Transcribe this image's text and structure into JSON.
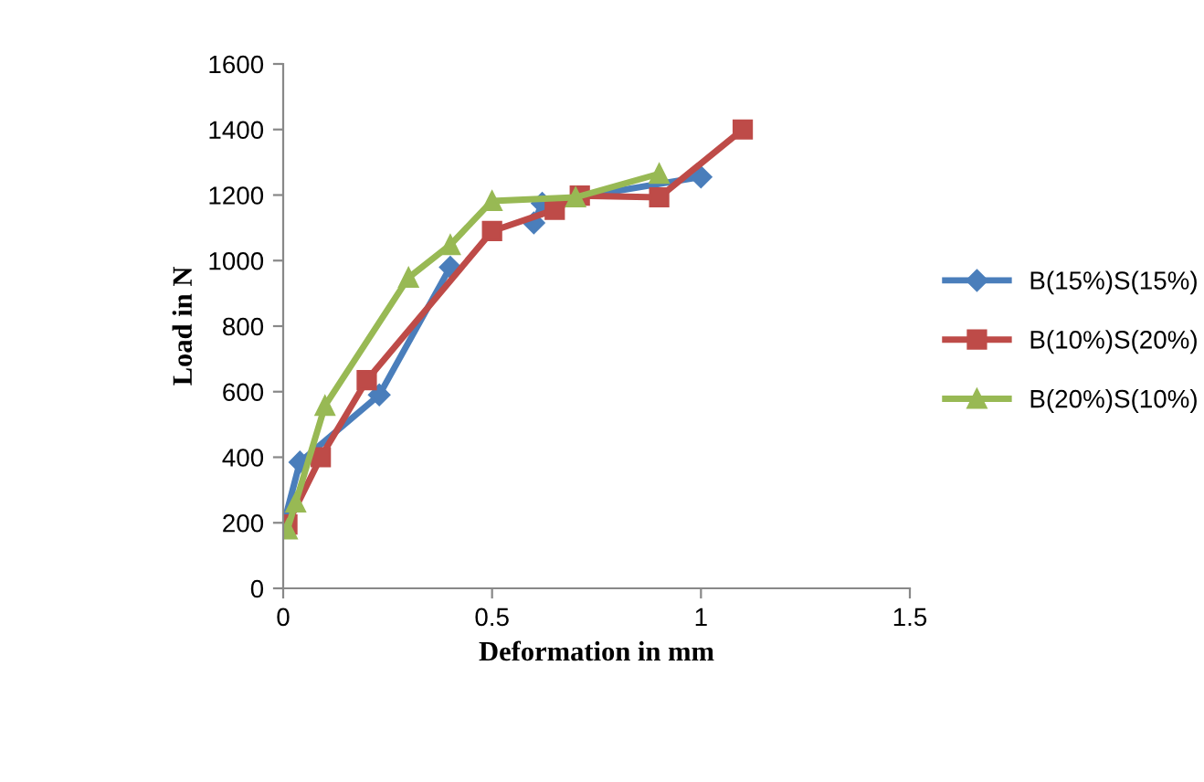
{
  "chart_data": {
    "type": "line",
    "xlabel": "Deformation in mm",
    "ylabel": "Load in N",
    "xlim": [
      0,
      1.5
    ],
    "xticks": [
      0,
      0.5,
      1,
      1.5
    ],
    "ylim": [
      0,
      1600
    ],
    "yticks": [
      0,
      200,
      400,
      600,
      800,
      1000,
      1200,
      1400,
      1600
    ],
    "grid": false,
    "legend": "right",
    "series": [
      {
        "name": "B(15%)S(15%)",
        "color": "#4a7ebb",
        "marker": "diamond",
        "x": [
          0,
          0.04,
          0.23,
          0.4,
          0.5,
          0.6,
          0.62,
          1.0
        ],
        "values": [
          190,
          385,
          590,
          980,
          null,
          1115,
          1175,
          1255
        ]
      },
      {
        "name": "B(10%)S(20%)",
        "color": "#be4b48",
        "marker": "square",
        "x": [
          0.01,
          0.09,
          0.2,
          0.5,
          0.65,
          0.71,
          0.9,
          1.1
        ],
        "values": [
          195,
          400,
          635,
          1090,
          1155,
          1198,
          1193,
          1400
        ]
      },
      {
        "name": "B(20%)S(10%)",
        "color": "#98b954",
        "marker": "triangle",
        "x": [
          0.01,
          0.03,
          0.1,
          0.3,
          0.4,
          0.5,
          0.7,
          0.9
        ],
        "values": [
          180,
          262,
          557,
          948,
          1048,
          1182,
          1193,
          1265
        ]
      }
    ]
  }
}
